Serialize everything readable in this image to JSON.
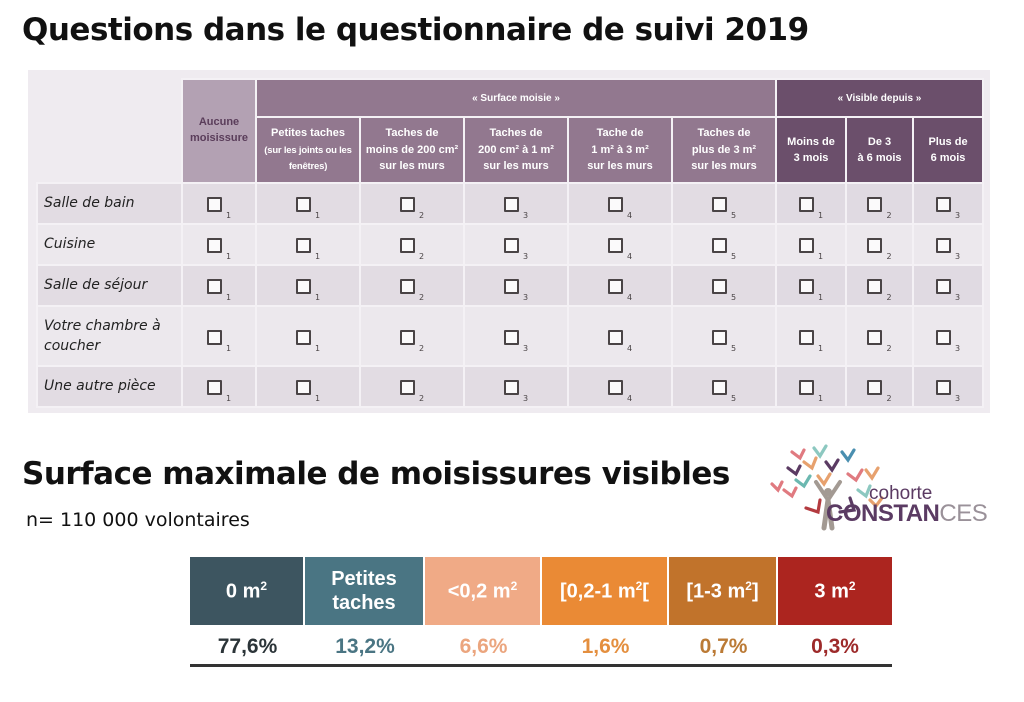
{
  "title_questions": "Questions dans le questionnaire de suivi 2019",
  "questionnaire": {
    "col_aucune": [
      "Aucune",
      "moisissure"
    ],
    "group_surface": "« Surface moisie »",
    "group_visible": "« Visible depuis »",
    "surface_cols": [
      {
        "l1": "Petites taches",
        "l2": "(sur les joints ou les",
        "l3": "fenêtres)",
        "num": "1"
      },
      {
        "l1": "Taches de",
        "l2": "moins de 200 cm²",
        "l3": "sur les murs",
        "num": "2"
      },
      {
        "l1": "Taches de",
        "l2": "200 cm² à 1 m²",
        "l3": "sur les murs",
        "num": "3"
      },
      {
        "l1": "Tache de",
        "l2": "1 m² à 3 m²",
        "l3": "sur les murs",
        "num": "4"
      },
      {
        "l1": "Taches de",
        "l2": "plus de 3 m²",
        "l3": "sur les murs",
        "num": "5"
      }
    ],
    "visible_cols": [
      {
        "l1": "Moins de",
        "l2": "3 mois",
        "num": "1"
      },
      {
        "l1": "De 3",
        "l2": "à 6 mois",
        "num": "2"
      },
      {
        "l1": "Plus de",
        "l2": "6 mois",
        "num": "3"
      }
    ],
    "aucune_num": "1",
    "rows": [
      {
        "label": "Salle de bain"
      },
      {
        "label": "Cuisine"
      },
      {
        "label": "Salle de séjour"
      },
      {
        "label": "Votre chambre à coucher"
      },
      {
        "label": "Une autre pièce"
      }
    ]
  },
  "title_surface": "Surface maximale de moisissures visibles",
  "sample_size": "n= 110 000 volontaires",
  "logo": {
    "line1": "cohorte",
    "line2a": "CONSTAN",
    "line2b": "CES"
  },
  "surface_scale": {
    "categories": [
      {
        "label": "0 m",
        "sup": "2",
        "pct": "77,6%",
        "color": "#3d5560",
        "text_color": "#2b3438"
      },
      {
        "label": "Petites taches",
        "sup": "",
        "pct": "13,2%",
        "color": "#4a7583",
        "text_color": "#4a7583"
      },
      {
        "label": "<0,2 m",
        "sup": "2",
        "pct": "6,6%",
        "color": "#f0aa86",
        "text_color": "#eba57e"
      },
      {
        "label": "[0,2-1 m",
        "sup": "2",
        "suffix": "[",
        "pct": "1,6%",
        "color": "#ea8a35",
        "text_color": "#e48f3f"
      },
      {
        "label": "[1-3 m",
        "sup": "2",
        "suffix": "]",
        "pct": "0,7%",
        "color": "#c1732b",
        "text_color": "#bb7a35"
      },
      {
        "label": "3 m",
        "sup": "2",
        "pct": "0,3%",
        "color": "#ac251f",
        "text_color": "#9d2a2a"
      }
    ]
  }
}
